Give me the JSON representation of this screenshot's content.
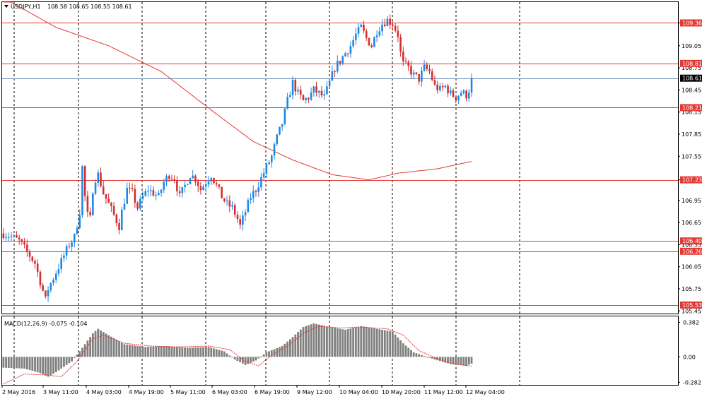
{
  "header": {
    "symbol": "USDJPY,H1",
    "ohlc": "108.58 108.65 108.55 108.61"
  },
  "macd_header": {
    "label": "MACD(12,26,9) -0.075 -0.104"
  },
  "colors": {
    "bull": "#1e88e5",
    "bear": "#d32f2f",
    "level": "#e53935",
    "sma": "#e53935",
    "macd_hist": "#808080",
    "signal": "#e53935",
    "price_line": "#6d8fb5",
    "grid": "#000000"
  },
  "chart_data": [
    {
      "type": "candlestick",
      "symbol": "USDJPY",
      "timeframe": "H1",
      "ylim": [
        105.4,
        109.6
      ],
      "price_ticks": [
        "109.36",
        "109.05",
        "108.75",
        "108.45",
        "108.15",
        "107.85",
        "107.55",
        "107.23",
        "106.95",
        "106.65",
        "106.35",
        "106.05",
        "105.75",
        "105.45"
      ],
      "levels": [
        {
          "value": 109.36,
          "label": "109.36"
        },
        {
          "value": 108.81,
          "label": "108.81"
        },
        {
          "value": 108.21,
          "label": "108.21"
        },
        {
          "value": 107.23,
          "label": "107.23"
        },
        {
          "value": 106.4,
          "label": "106.40"
        },
        {
          "value": 106.26,
          "label": "106.26"
        },
        {
          "value": 105.53,
          "label": "105.53"
        }
      ],
      "current_price": {
        "value": 108.61,
        "label": "108.61"
      },
      "time_labels": [
        "2 May 2016",
        "3 May 11:00",
        "4 May 03:00",
        "4 May 19:00",
        "5 May 11:00",
        "6 May 03:00",
        "6 May 19:00",
        "9 May 12:00",
        "10 May 04:00",
        "10 May 20:00",
        "11 May 12:00",
        "12 May 04:00"
      ],
      "close_path": [
        [
          0,
          106.5
        ],
        [
          3,
          106.46
        ],
        [
          6,
          106.4
        ],
        [
          10,
          106.2
        ],
        [
          12,
          106.1
        ],
        [
          14,
          105.85
        ],
        [
          16,
          105.6
        ],
        [
          17,
          105.75
        ],
        [
          19,
          105.9
        ],
        [
          21,
          106.05
        ],
        [
          23,
          106.2
        ],
        [
          25,
          106.35
        ],
        [
          27,
          106.45
        ],
        [
          29,
          106.8
        ],
        [
          30,
          107.4
        ],
        [
          31,
          107.0
        ],
        [
          32,
          106.75
        ],
        [
          33,
          106.7
        ],
        [
          34,
          107.1
        ],
        [
          35,
          107.25
        ],
        [
          36,
          107.3
        ],
        [
          38,
          107.05
        ],
        [
          40,
          106.9
        ],
        [
          42,
          106.75
        ],
        [
          44,
          106.6
        ],
        [
          45,
          106.8
        ],
        [
          47,
          107.1
        ],
        [
          49,
          107.05
        ],
        [
          51,
          106.85
        ],
        [
          53,
          107.0
        ],
        [
          55,
          107.1
        ],
        [
          57,
          107.05
        ],
        [
          59,
          107.0
        ],
        [
          61,
          107.2
        ],
        [
          63,
          107.3
        ],
        [
          65,
          107.25
        ],
        [
          67,
          107.0
        ],
        [
          69,
          107.15
        ],
        [
          71,
          107.3
        ],
        [
          73,
          107.25
        ],
        [
          75,
          107.1
        ],
        [
          77,
          107.2
        ],
        [
          79,
          107.3
        ],
        [
          81,
          107.15
        ],
        [
          83,
          107.0
        ],
        [
          85,
          106.9
        ],
        [
          87,
          106.85
        ],
        [
          89,
          106.7
        ],
        [
          90,
          106.6
        ],
        [
          92,
          106.8
        ],
        [
          94,
          107.0
        ],
        [
          96,
          107.1
        ],
        [
          98,
          107.25
        ],
        [
          100,
          107.4
        ],
        [
          102,
          107.55
        ],
        [
          104,
          107.8
        ],
        [
          106,
          108.0
        ],
        [
          108,
          108.3
        ],
        [
          110,
          108.55
        ],
        [
          112,
          108.4
        ],
        [
          114,
          108.3
        ],
        [
          116,
          108.35
        ],
        [
          118,
          108.45
        ],
        [
          120,
          108.4
        ],
        [
          122,
          108.35
        ],
        [
          124,
          108.55
        ],
        [
          126,
          108.75
        ],
        [
          128,
          108.85
        ],
        [
          130,
          108.95
        ],
        [
          132,
          109.05
        ],
        [
          134,
          109.2
        ],
        [
          136,
          109.3
        ],
        [
          138,
          109.15
        ],
        [
          140,
          109.05
        ],
        [
          142,
          109.25
        ],
        [
          144,
          109.35
        ],
        [
          146,
          109.4
        ],
        [
          148,
          109.35
        ],
        [
          150,
          109.2
        ],
        [
          151,
          108.95
        ],
        [
          152,
          108.8
        ],
        [
          154,
          108.75
        ],
        [
          156,
          108.65
        ],
        [
          158,
          108.6
        ],
        [
          160,
          108.75
        ],
        [
          162,
          108.7
        ],
        [
          164,
          108.5
        ],
        [
          166,
          108.45
        ],
        [
          168,
          108.5
        ],
        [
          170,
          108.4
        ],
        [
          172,
          108.35
        ],
        [
          174,
          108.42
        ],
        [
          176,
          108.38
        ],
        [
          177,
          108.45
        ],
        [
          178,
          108.61
        ]
      ],
      "sma_path": [
        [
          0,
          109.7
        ],
        [
          20,
          109.3
        ],
        [
          40,
          109.05
        ],
        [
          60,
          108.7
        ],
        [
          80,
          108.15
        ],
        [
          95,
          107.75
        ],
        [
          110,
          107.5
        ],
        [
          125,
          107.3
        ],
        [
          139,
          107.23
        ],
        [
          150,
          107.32
        ],
        [
          165,
          107.38
        ],
        [
          178,
          107.48
        ]
      ],
      "macd_panel": {
        "ylim": [
          -0.3,
          0.4
        ],
        "ticks": [
          "0.382",
          "0.00",
          "-0.282"
        ],
        "hist_path": [
          [
            0,
            -0.12
          ],
          [
            8,
            -0.13
          ],
          [
            14,
            -0.18
          ],
          [
            17,
            -0.22
          ],
          [
            20,
            -0.17
          ],
          [
            26,
            -0.05
          ],
          [
            30,
            0.1
          ],
          [
            34,
            0.26
          ],
          [
            36,
            0.31
          ],
          [
            40,
            0.24
          ],
          [
            46,
            0.14
          ],
          [
            54,
            0.11
          ],
          [
            62,
            0.12
          ],
          [
            70,
            0.1
          ],
          [
            78,
            0.11
          ],
          [
            84,
            0.06
          ],
          [
            88,
            -0.03
          ],
          [
            92,
            -0.09
          ],
          [
            96,
            -0.04
          ],
          [
            100,
            0.05
          ],
          [
            106,
            0.12
          ],
          [
            110,
            0.22
          ],
          [
            114,
            0.33
          ],
          [
            118,
            0.37
          ],
          [
            124,
            0.33
          ],
          [
            130,
            0.3
          ],
          [
            136,
            0.34
          ],
          [
            142,
            0.31
          ],
          [
            148,
            0.28
          ],
          [
            152,
            0.15
          ],
          [
            156,
            0.05
          ],
          [
            160,
            0.01
          ],
          [
            164,
            -0.03
          ],
          [
            170,
            -0.08
          ],
          [
            176,
            -0.1
          ],
          [
            178,
            -0.075
          ]
        ],
        "signal_path": [
          [
            0,
            -0.3
          ],
          [
            8,
            -0.19
          ],
          [
            16,
            -0.2
          ],
          [
            22,
            -0.22
          ],
          [
            28,
            -0.05
          ],
          [
            34,
            0.2
          ],
          [
            38,
            0.24
          ],
          [
            46,
            0.15
          ],
          [
            56,
            0.12
          ],
          [
            66,
            0.11
          ],
          [
            78,
            0.12
          ],
          [
            86,
            0.08
          ],
          [
            92,
            -0.05
          ],
          [
            97,
            -0.1
          ],
          [
            102,
            0.02
          ],
          [
            108,
            0.12
          ],
          [
            114,
            0.26
          ],
          [
            120,
            0.34
          ],
          [
            128,
            0.32
          ],
          [
            136,
            0.33
          ],
          [
            146,
            0.31
          ],
          [
            152,
            0.24
          ],
          [
            158,
            0.07
          ],
          [
            164,
            -0.01
          ],
          [
            170,
            -0.07
          ],
          [
            178,
            -0.104
          ]
        ]
      }
    }
  ]
}
